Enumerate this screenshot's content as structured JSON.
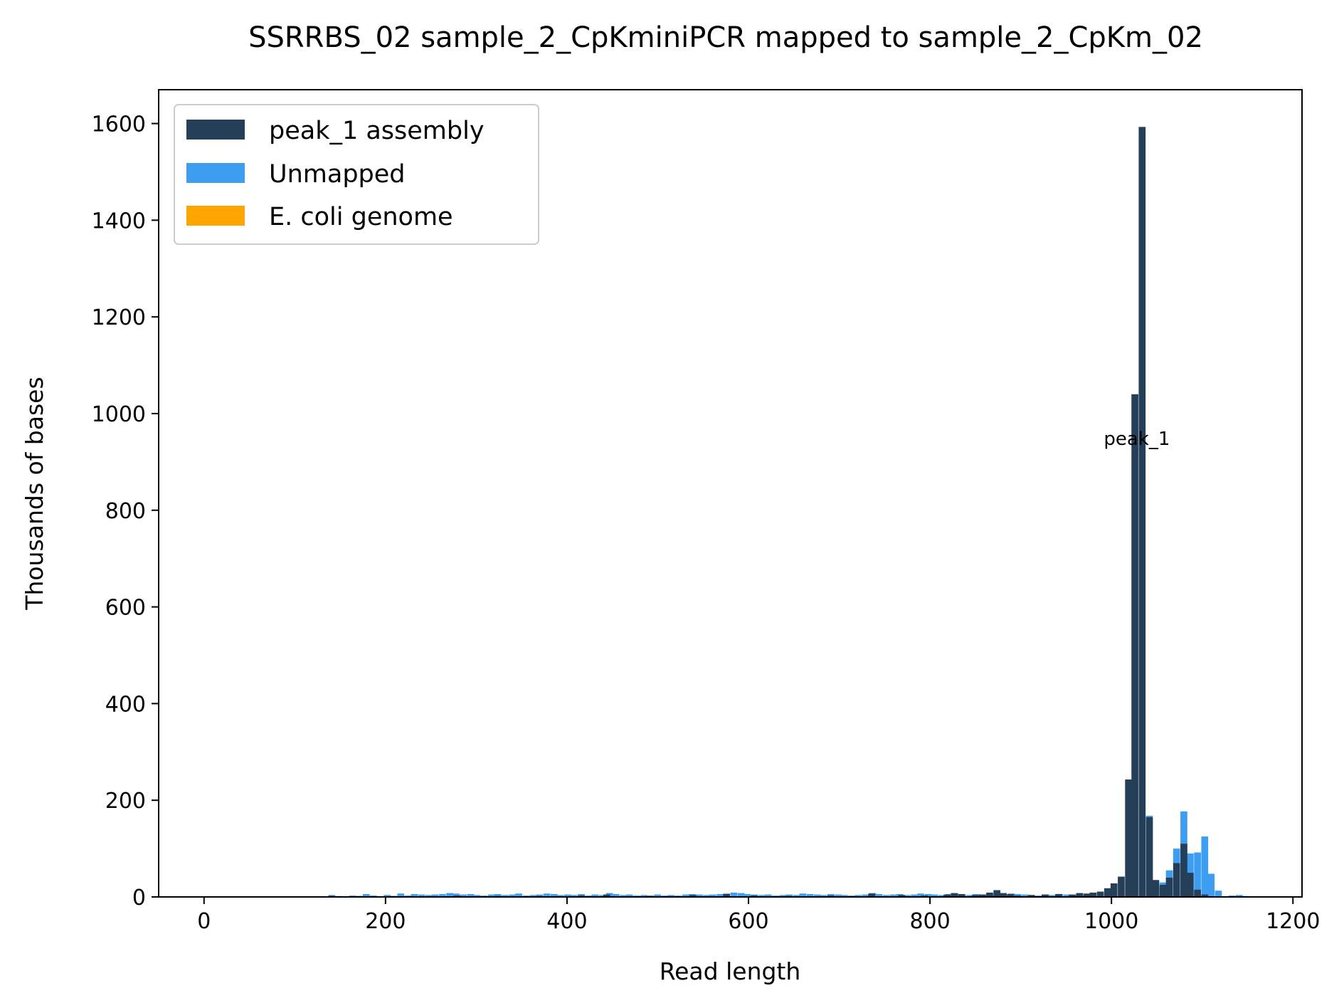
{
  "chart_data": {
    "type": "bar",
    "title": "SSRRBS_02 sample_2_CpKminiPCR mapped to sample_2_CpKm_02",
    "xlabel": "Read length",
    "ylabel": "Thousands of bases",
    "xlim": [
      -50,
      1210
    ],
    "ylim": [
      0,
      1670
    ],
    "xticks": [
      0,
      200,
      400,
      600,
      800,
      1000,
      1200
    ],
    "yticks": [
      0,
      200,
      400,
      600,
      800,
      1000,
      1200,
      1400,
      1600
    ],
    "bin_width": 7.6,
    "legend_position": "top-left",
    "grid": false,
    "series": [
      {
        "name": "peak_1 assembly",
        "color": "#253f58",
        "bins": [
          [
            137,
            2
          ],
          [
            168,
            2
          ],
          [
            205,
            2
          ],
          [
            275,
            3
          ],
          [
            320,
            2
          ],
          [
            366,
            2
          ],
          [
            412,
            3
          ],
          [
            440,
            5
          ],
          [
            488,
            2
          ],
          [
            535,
            4
          ],
          [
            572,
            6
          ],
          [
            602,
            3
          ],
          [
            640,
            2
          ],
          [
            687,
            3
          ],
          [
            732,
            7
          ],
          [
            765,
            4
          ],
          [
            790,
            3
          ],
          [
            815,
            5
          ],
          [
            823,
            8
          ],
          [
            831,
            6
          ],
          [
            846,
            4
          ],
          [
            854,
            5
          ],
          [
            862,
            9
          ],
          [
            870,
            14
          ],
          [
            877,
            8
          ],
          [
            885,
            6
          ],
          [
            893,
            3
          ],
          [
            908,
            4
          ],
          [
            923,
            5
          ],
          [
            938,
            6
          ],
          [
            953,
            5
          ],
          [
            961,
            8
          ],
          [
            969,
            7
          ],
          [
            976,
            9
          ],
          [
            984,
            11
          ],
          [
            992,
            18
          ],
          [
            999,
            28
          ],
          [
            1007,
            42
          ],
          [
            1015,
            243
          ],
          [
            1022,
            1040
          ],
          [
            1030,
            1593
          ],
          [
            1038,
            165
          ],
          [
            1045,
            35
          ],
          [
            1053,
            25
          ],
          [
            1060,
            40
          ],
          [
            1068,
            70
          ],
          [
            1076,
            110
          ],
          [
            1083,
            50
          ],
          [
            1091,
            15
          ],
          [
            1099,
            5
          ]
        ]
      },
      {
        "name": "Unmapped",
        "color": "#3d9df0",
        "bins": [
          [
            137,
            4
          ],
          [
            145,
            2
          ],
          [
            160,
            3
          ],
          [
            175,
            6
          ],
          [
            183,
            3
          ],
          [
            198,
            4
          ],
          [
            213,
            7
          ],
          [
            221,
            3
          ],
          [
            228,
            6
          ],
          [
            236,
            5
          ],
          [
            244,
            4
          ],
          [
            251,
            5
          ],
          [
            259,
            6
          ],
          [
            267,
            8
          ],
          [
            274,
            7
          ],
          [
            282,
            5
          ],
          [
            290,
            6
          ],
          [
            297,
            4
          ],
          [
            305,
            3
          ],
          [
            313,
            5
          ],
          [
            320,
            6
          ],
          [
            328,
            4
          ],
          [
            336,
            5
          ],
          [
            343,
            7
          ],
          [
            351,
            3
          ],
          [
            359,
            4
          ],
          [
            366,
            5
          ],
          [
            374,
            7
          ],
          [
            382,
            6
          ],
          [
            389,
            4
          ],
          [
            397,
            5
          ],
          [
            404,
            4
          ],
          [
            412,
            6
          ],
          [
            420,
            3
          ],
          [
            427,
            5
          ],
          [
            435,
            4
          ],
          [
            443,
            8
          ],
          [
            450,
            6
          ],
          [
            458,
            4
          ],
          [
            465,
            5
          ],
          [
            473,
            3
          ],
          [
            481,
            4
          ],
          [
            488,
            3
          ],
          [
            496,
            5
          ],
          [
            504,
            3
          ],
          [
            511,
            4
          ],
          [
            519,
            3
          ],
          [
            527,
            5
          ],
          [
            534,
            6
          ],
          [
            542,
            5
          ],
          [
            550,
            4
          ],
          [
            557,
            5
          ],
          [
            565,
            6
          ],
          [
            572,
            7
          ],
          [
            580,
            9
          ],
          [
            588,
            8
          ],
          [
            595,
            6
          ],
          [
            603,
            5
          ],
          [
            611,
            4
          ],
          [
            618,
            5
          ],
          [
            626,
            3
          ],
          [
            634,
            4
          ],
          [
            641,
            5
          ],
          [
            649,
            4
          ],
          [
            656,
            7
          ],
          [
            664,
            6
          ],
          [
            672,
            5
          ],
          [
            679,
            4
          ],
          [
            687,
            6
          ],
          [
            695,
            5
          ],
          [
            702,
            4
          ],
          [
            710,
            3
          ],
          [
            717,
            4
          ],
          [
            725,
            5
          ],
          [
            733,
            8
          ],
          [
            740,
            6
          ],
          [
            748,
            4
          ],
          [
            756,
            5
          ],
          [
            763,
            6
          ],
          [
            771,
            4
          ],
          [
            779,
            5
          ],
          [
            786,
            7
          ],
          [
            794,
            6
          ],
          [
            801,
            5
          ],
          [
            809,
            4
          ],
          [
            817,
            6
          ],
          [
            824,
            7
          ],
          [
            832,
            5
          ],
          [
            840,
            4
          ],
          [
            847,
            6
          ],
          [
            855,
            5
          ],
          [
            863,
            4
          ],
          [
            870,
            6
          ],
          [
            878,
            5
          ],
          [
            886,
            7
          ],
          [
            893,
            6
          ],
          [
            901,
            5
          ],
          [
            908,
            4
          ],
          [
            916,
            3
          ],
          [
            924,
            5
          ],
          [
            931,
            4
          ],
          [
            939,
            6
          ],
          [
            947,
            5
          ],
          [
            954,
            4
          ],
          [
            962,
            3
          ],
          [
            1038,
            168
          ],
          [
            1045,
            20
          ],
          [
            1053,
            30
          ],
          [
            1060,
            55
          ],
          [
            1068,
            100
          ],
          [
            1076,
            177
          ],
          [
            1083,
            90
          ],
          [
            1091,
            92
          ],
          [
            1099,
            125
          ],
          [
            1106,
            48
          ],
          [
            1114,
            13
          ],
          [
            1129,
            3
          ],
          [
            1137,
            4
          ],
          [
            1144,
            2
          ]
        ]
      },
      {
        "name": "E. coli genome",
        "color": "#ffa500",
        "bins": []
      }
    ],
    "annotations": [
      {
        "text": "peak_1",
        "x": 1028,
        "y": 935
      }
    ]
  }
}
